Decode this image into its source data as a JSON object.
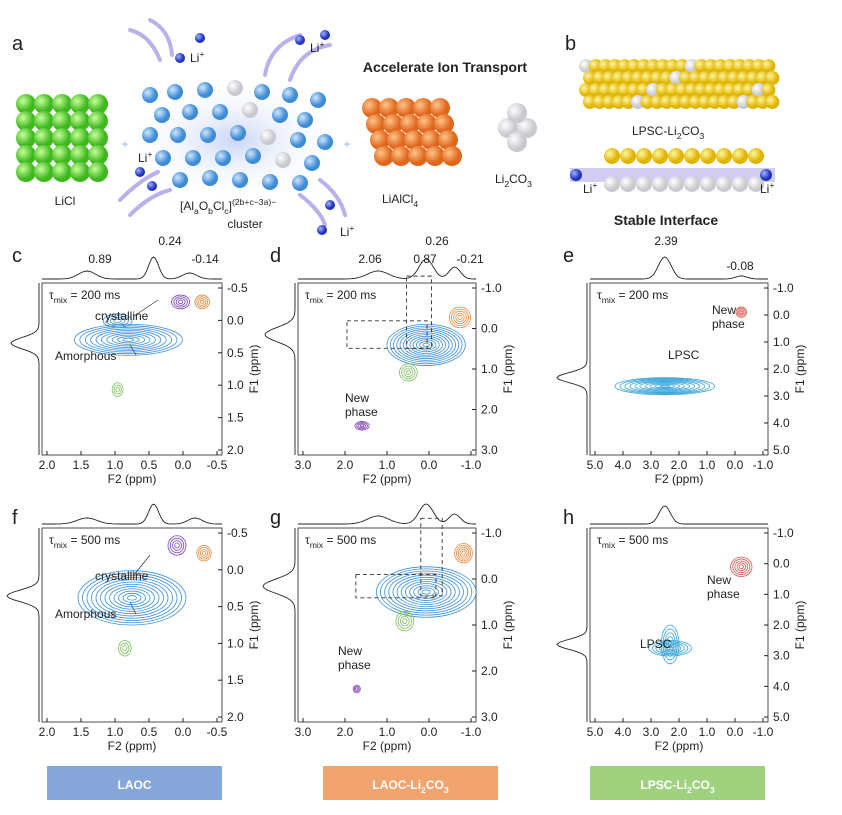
{
  "panel_a": {
    "label": "a",
    "heading": "Accelerate Ion Transport",
    "licl": "LiCl",
    "lialcl4": {
      "parts": [
        "LiAlCl",
        "4"
      ]
    },
    "li2co3": {
      "parts": [
        "Li",
        "2",
        "CO",
        "3"
      ]
    },
    "cluster_formula": {
      "parts": [
        "[Al",
        "a",
        "O",
        "b",
        "Cl",
        "c",
        "]"
      ],
      "sup": "(2b+c−3a)−"
    },
    "cluster_word": "cluster",
    "plus_signs": [
      "+",
      "+"
    ],
    "ion_labels": [
      {
        "parts": [
          "Li"
        ],
        "sup": "+"
      },
      {
        "parts": [
          "Li"
        ],
        "sup": "+"
      },
      {
        "parts": [
          "Li"
        ],
        "sup": "+"
      },
      {
        "parts": [
          "Li"
        ],
        "sup": "+"
      }
    ]
  },
  "panel_b": {
    "label": "b",
    "caption": {
      "parts": [
        "LPSC-Li",
        "2",
        "CO",
        "3"
      ]
    },
    "ion_labels": [
      {
        "parts": [
          "Li"
        ],
        "sup": "+"
      },
      {
        "parts": [
          "Li"
        ],
        "sup": "+"
      }
    ]
  },
  "panel_c": {
    "label": "c",
    "peaks": [
      "0.89",
      "0.24",
      "-0.14"
    ],
    "tau": {
      "parts": [
        "τ",
        "mix",
        " = 200 ms"
      ]
    },
    "annotations": [
      [
        "crystalline"
      ],
      [
        "Amorphous"
      ]
    ],
    "x_ticks": [
      "2.0",
      "1.5",
      "1.0",
      "0.5",
      "0.0",
      "-0.5"
    ],
    "y_ticks": [
      "-0.5",
      "0.0",
      "0.5",
      "1.0",
      "1.5",
      "2.0"
    ],
    "x_title": "F2 (ppm)",
    "y_title": "F1 (ppm)"
  },
  "panel_d": {
    "label": "d",
    "peaks": [
      "2.06",
      "0.87",
      "0.26",
      "-0.21"
    ],
    "tau": {
      "parts": [
        "τ",
        "mix",
        " = 200 ms"
      ]
    },
    "annotations": [
      [
        "New",
        "phase"
      ]
    ],
    "x_ticks": [
      "3.0",
      "2.0",
      "1.0",
      "0.0",
      "-1.0"
    ],
    "y_ticks": [
      "-1.0",
      "0.0",
      "1.0",
      "2.0",
      "3.0"
    ],
    "x_title": "F2 (ppm)",
    "y_title": "F1 (ppm)"
  },
  "panel_e": {
    "label": "e",
    "heading": "Stable Interface",
    "peaks": [
      "2.39",
      "-0.08"
    ],
    "tau": {
      "parts": [
        "τ",
        "mix",
        " = 200 ms"
      ]
    },
    "annotations": [
      [
        "New",
        "phase"
      ],
      [
        "LPSC"
      ]
    ],
    "x_ticks": [
      "5.0",
      "4.0",
      "3.0",
      "2.0",
      "1.0",
      "0.0",
      "-1.0"
    ],
    "y_ticks": [
      "-1.0",
      "0.0",
      "1.0",
      "2.0",
      "3.0",
      "4.0",
      "5.0"
    ],
    "x_title": "F2 (ppm)",
    "y_title": "F1 (ppm)"
  },
  "panel_f": {
    "label": "f",
    "peaks": [],
    "tau": {
      "parts": [
        "τ",
        "mix",
        " = 500 ms"
      ]
    },
    "annotations": [
      [
        "crystalline"
      ],
      [
        "Amorphous"
      ]
    ],
    "x_ticks": [
      "2.0",
      "1.5",
      "1.0",
      "0.5",
      "0.0",
      "-0.5"
    ],
    "y_ticks": [
      "-0.5",
      "0.0",
      "0.5",
      "1.0",
      "1.5",
      "2.0"
    ],
    "x_title": "F2 (ppm)",
    "y_title": "F1 (ppm)"
  },
  "panel_g": {
    "label": "g",
    "peaks": [],
    "tau": {
      "parts": [
        "τ",
        "mix",
        " = 500 ms"
      ]
    },
    "annotations": [
      [
        "New",
        "phase"
      ]
    ],
    "x_ticks": [
      "3.0",
      "2.0",
      "1.0",
      "0.0",
      "-1.0"
    ],
    "y_ticks": [
      "-1.0",
      "0.0",
      "1.0",
      "2.0",
      "3.0"
    ],
    "x_title": "F2 (ppm)",
    "y_title": "F1 (ppm)"
  },
  "panel_h": {
    "label": "h",
    "peaks": [],
    "tau": {
      "parts": [
        "τ",
        "mix",
        " = 500 ms"
      ]
    },
    "annotations": [
      [
        "New",
        "phase"
      ],
      [
        "LPSC"
      ]
    ],
    "x_ticks": [
      "5.0",
      "4.0",
      "3.0",
      "2.0",
      "1.0",
      "0.0",
      "-1.0"
    ],
    "y_ticks": [
      "-1.0",
      "0.0",
      "1.0",
      "2.0",
      "3.0",
      "4.0",
      "5.0"
    ],
    "x_title": "F2 (ppm)",
    "y_title": "F1 (ppm)"
  },
  "legend": [
    {
      "parts": [
        "LAOC"
      ]
    },
    {
      "parts": [
        "LAOC-Li",
        "2",
        "CO",
        "3"
      ]
    },
    {
      "parts": [
        "LPSC-Li",
        "2",
        "CO",
        "3"
      ]
    }
  ]
}
